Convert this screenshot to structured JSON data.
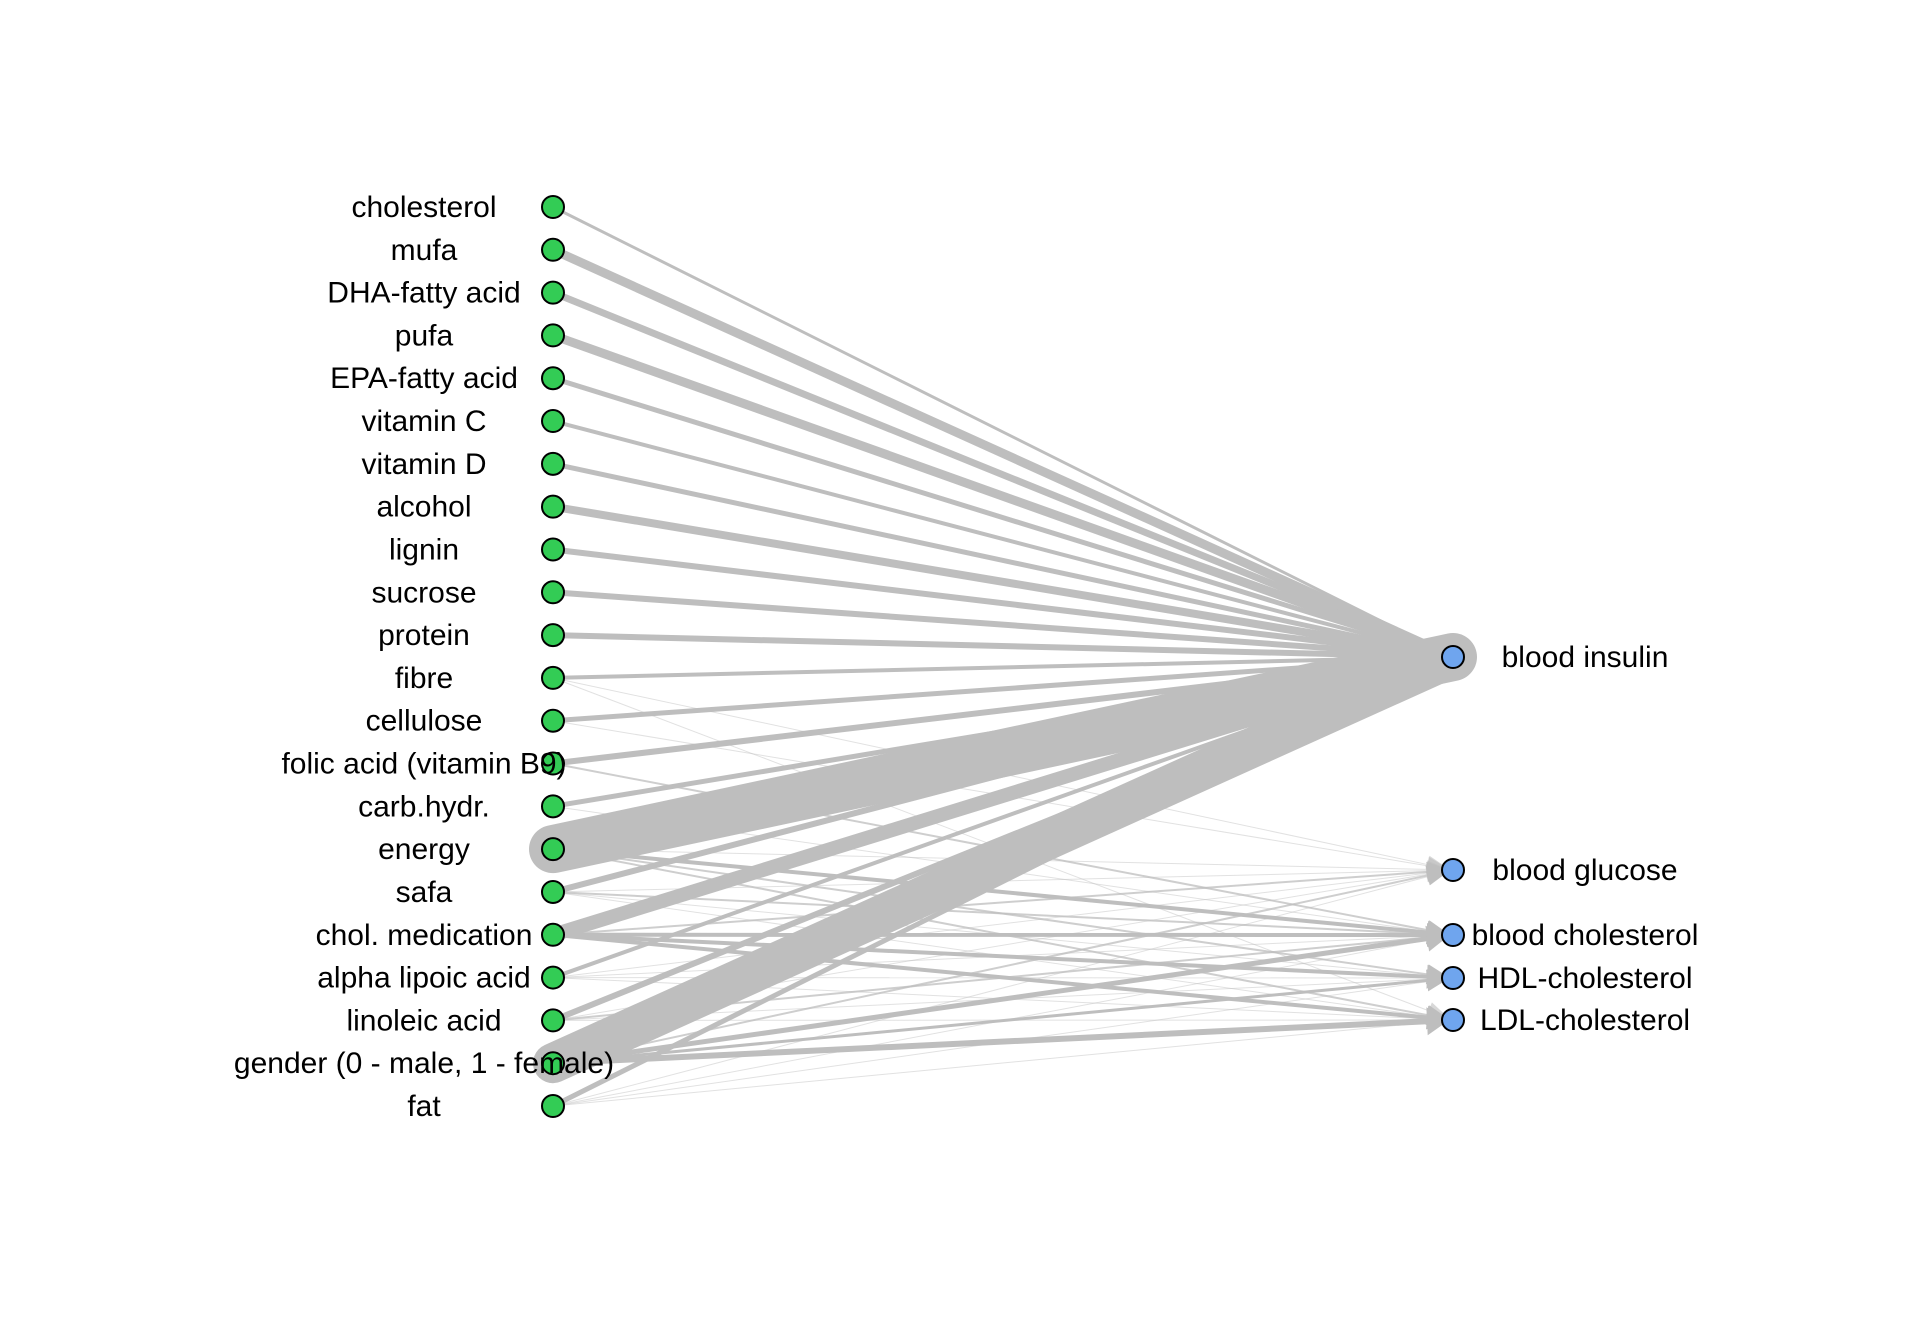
{
  "colors": {
    "background": "#ffffff",
    "edge": "#bebebe",
    "source_node_fill": "#33cc55",
    "target_node_fill": "#6fa5ee",
    "node_stroke": "#000000"
  },
  "source_nodes": [
    {
      "id": "cholesterol",
      "label": "cholesterol"
    },
    {
      "id": "mufa",
      "label": "mufa"
    },
    {
      "id": "dha",
      "label": "DHA-fatty acid"
    },
    {
      "id": "pufa",
      "label": "pufa"
    },
    {
      "id": "epa",
      "label": "EPA-fatty acid"
    },
    {
      "id": "vitc",
      "label": "vitamin C"
    },
    {
      "id": "vitd",
      "label": "vitamin D"
    },
    {
      "id": "alcohol",
      "label": "alcohol"
    },
    {
      "id": "lignin",
      "label": "lignin"
    },
    {
      "id": "sucrose",
      "label": "sucrose"
    },
    {
      "id": "protein",
      "label": "protein"
    },
    {
      "id": "fibre",
      "label": "fibre"
    },
    {
      "id": "cellulose",
      "label": "cellulose"
    },
    {
      "id": "folic",
      "label": "folic acid (vitamin B9)"
    },
    {
      "id": "carb",
      "label": "carb.hydr."
    },
    {
      "id": "energy",
      "label": "energy"
    },
    {
      "id": "safa",
      "label": "safa"
    },
    {
      "id": "cholmed",
      "label": "chol. medication"
    },
    {
      "id": "alpha",
      "label": "alpha lipoic acid"
    },
    {
      "id": "linoleic",
      "label": "linoleic acid"
    },
    {
      "id": "gender",
      "label": "gender (0 - male, 1 - female)"
    },
    {
      "id": "fat",
      "label": "fat"
    }
  ],
  "target_nodes": [
    {
      "id": "insulin",
      "label": "blood insulin"
    },
    {
      "id": "glucose",
      "label": "blood glucose"
    },
    {
      "id": "bchol",
      "label": "blood cholesterol"
    },
    {
      "id": "hdl",
      "label": "HDL-cholesterol"
    },
    {
      "id": "ldl",
      "label": "LDL-cholesterol"
    }
  ],
  "edges": [
    {
      "from": "cholesterol",
      "to": "insulin",
      "weight": 3
    },
    {
      "from": "mufa",
      "to": "insulin",
      "weight": 9
    },
    {
      "from": "dha",
      "to": "insulin",
      "weight": 7
    },
    {
      "from": "pufa",
      "to": "insulin",
      "weight": 9
    },
    {
      "from": "epa",
      "to": "insulin",
      "weight": 5
    },
    {
      "from": "vitc",
      "to": "insulin",
      "weight": 4
    },
    {
      "from": "vitd",
      "to": "insulin",
      "weight": 5
    },
    {
      "from": "alcohol",
      "to": "insulin",
      "weight": 8
    },
    {
      "from": "lignin",
      "to": "insulin",
      "weight": 6
    },
    {
      "from": "sucrose",
      "to": "insulin",
      "weight": 6
    },
    {
      "from": "protein",
      "to": "insulin",
      "weight": 6
    },
    {
      "from": "fibre",
      "to": "insulin",
      "weight": 4
    },
    {
      "from": "cellulose",
      "to": "insulin",
      "weight": 5
    },
    {
      "from": "folic",
      "to": "insulin",
      "weight": 6
    },
    {
      "from": "carb",
      "to": "insulin",
      "weight": 5
    },
    {
      "from": "energy",
      "to": "insulin",
      "weight": 48
    },
    {
      "from": "safa",
      "to": "insulin",
      "weight": 6
    },
    {
      "from": "cholmed",
      "to": "insulin",
      "weight": 14
    },
    {
      "from": "alpha",
      "to": "insulin",
      "weight": 4
    },
    {
      "from": "linoleic",
      "to": "insulin",
      "weight": 6
    },
    {
      "from": "gender",
      "to": "insulin",
      "weight": 40
    },
    {
      "from": "fat",
      "to": "insulin",
      "weight": 5
    },
    {
      "from": "fibre",
      "to": "glucose",
      "weight": 1
    },
    {
      "from": "cellulose",
      "to": "glucose",
      "weight": 1
    },
    {
      "from": "energy",
      "to": "glucose",
      "weight": 1
    },
    {
      "from": "safa",
      "to": "glucose",
      "weight": 1
    },
    {
      "from": "cholmed",
      "to": "glucose",
      "weight": 2
    },
    {
      "from": "alpha",
      "to": "glucose",
      "weight": 1
    },
    {
      "from": "linoleic",
      "to": "glucose",
      "weight": 1
    },
    {
      "from": "gender",
      "to": "glucose",
      "weight": 2
    },
    {
      "from": "fat",
      "to": "glucose",
      "weight": 1
    },
    {
      "from": "folic",
      "to": "bchol",
      "weight": 2
    },
    {
      "from": "carb",
      "to": "bchol",
      "weight": 1
    },
    {
      "from": "energy",
      "to": "bchol",
      "weight": 4
    },
    {
      "from": "safa",
      "to": "bchol",
      "weight": 2
    },
    {
      "from": "cholmed",
      "to": "bchol",
      "weight": 4
    },
    {
      "from": "alpha",
      "to": "bchol",
      "weight": 1
    },
    {
      "from": "linoleic",
      "to": "bchol",
      "weight": 2
    },
    {
      "from": "gender",
      "to": "bchol",
      "weight": 5
    },
    {
      "from": "fat",
      "to": "bchol",
      "weight": 1
    },
    {
      "from": "energy",
      "to": "hdl",
      "weight": 2
    },
    {
      "from": "safa",
      "to": "hdl",
      "weight": 1
    },
    {
      "from": "cholmed",
      "to": "hdl",
      "weight": 4
    },
    {
      "from": "alpha",
      "to": "hdl",
      "weight": 1
    },
    {
      "from": "linoleic",
      "to": "hdl",
      "weight": 1
    },
    {
      "from": "gender",
      "to": "hdl",
      "weight": 3
    },
    {
      "from": "fat",
      "to": "hdl",
      "weight": 1
    },
    {
      "from": "fibre",
      "to": "ldl",
      "weight": 1
    },
    {
      "from": "energy",
      "to": "ldl",
      "weight": 2
    },
    {
      "from": "safa",
      "to": "ldl",
      "weight": 1
    },
    {
      "from": "cholmed",
      "to": "ldl",
      "weight": 4
    },
    {
      "from": "alpha",
      "to": "ldl",
      "weight": 1
    },
    {
      "from": "linoleic",
      "to": "ldl",
      "weight": 1
    },
    {
      "from": "gender",
      "to": "ldl",
      "weight": 6
    },
    {
      "from": "fat",
      "to": "ldl",
      "weight": 1
    }
  ]
}
